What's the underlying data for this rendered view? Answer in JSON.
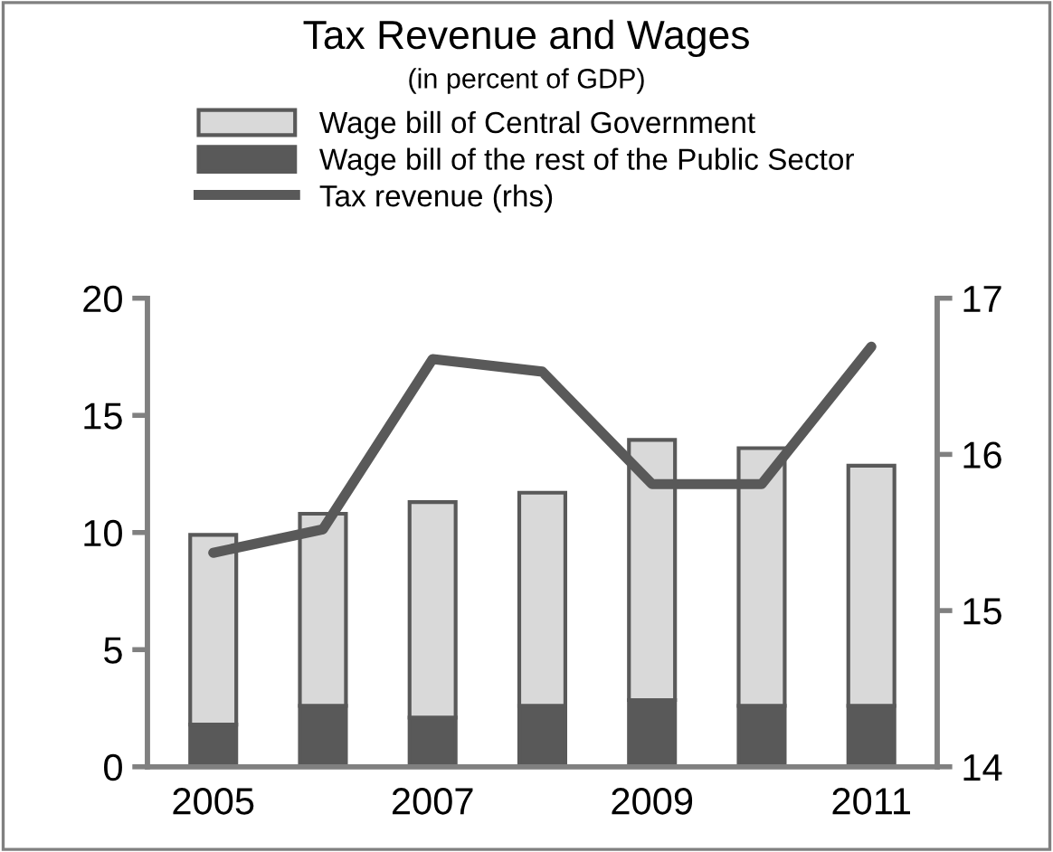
{
  "chart_data": {
    "type": "bar",
    "title": "Tax Revenue and Wages",
    "subtitle": "(in percent of GDP)",
    "categories": [
      "2005",
      null,
      "2007",
      null,
      "2009",
      null,
      "2011"
    ],
    "stacked": true,
    "series": [
      {
        "name": "Wage bill of the rest of the Public Sector",
        "color": "#595959",
        "values": [
          1.8,
          2.6,
          2.1,
          2.6,
          2.85,
          2.6,
          2.6
        ]
      },
      {
        "name": "Wage bill of Central Government",
        "color": "#d9d9d9",
        "values": [
          8.1,
          8.2,
          9.2,
          9.1,
          11.1,
          11.0,
          10.25
        ]
      },
      {
        "name": "Tax revenue (rhs)",
        "type": "line",
        "axis": "y2",
        "color": "#595959",
        "values": [
          15.37,
          15.52,
          16.61,
          16.53,
          15.81,
          15.81,
          16.69
        ]
      }
    ],
    "ylim": [
      0,
      20
    ],
    "yticks": [
      0,
      5,
      10,
      15,
      20
    ],
    "y2lim": [
      14,
      17
    ],
    "y2ticks": [
      14,
      15,
      16,
      17
    ],
    "grid": false,
    "legend": "top",
    "marker": "none",
    "line_style": "solid"
  }
}
